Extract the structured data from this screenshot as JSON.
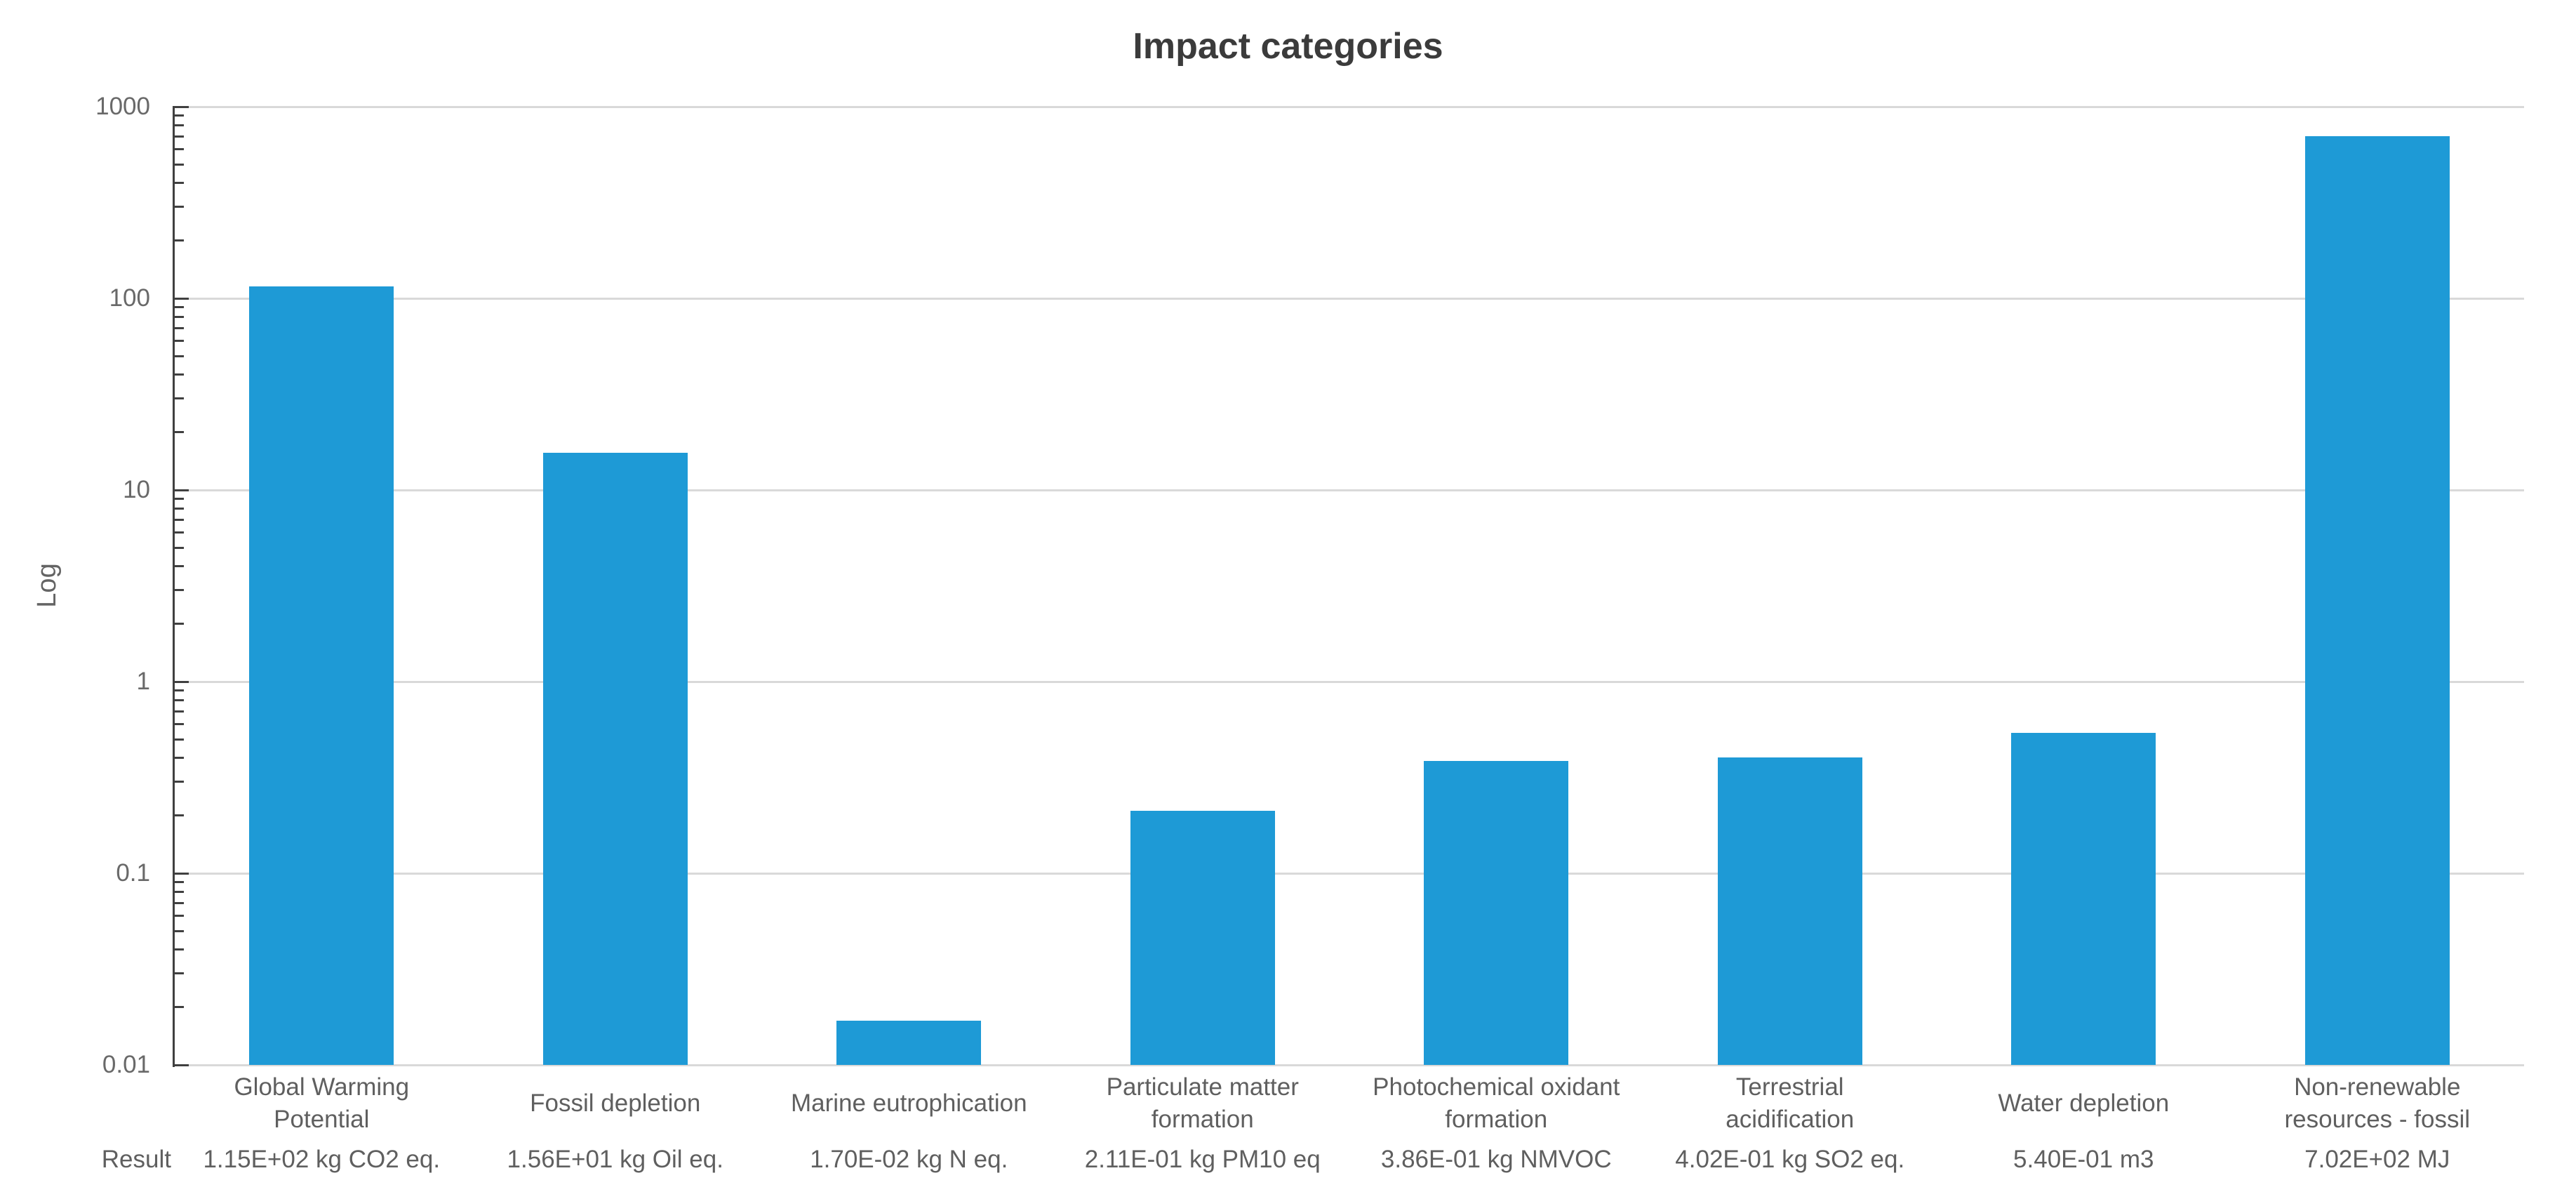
{
  "chart_data": {
    "type": "bar",
    "title": "Impact categories",
    "ylabel": "Log",
    "yscale": "log",
    "ylim": [
      0.01,
      1000
    ],
    "yticks": [
      "1000",
      "100",
      "10",
      "1",
      "0.1",
      "0.01"
    ],
    "grid": "horizontal-decade-gridlines",
    "legend": "none",
    "categories": [
      "Global Warming\nPotential",
      "Fossil depletion",
      "Marine eutrophication",
      "Particulate matter\nformation",
      "Photochemical oxidant\nformation",
      "Terrestrial\nacidification",
      "Water depletion",
      "Non-renewable\nresources - fossil"
    ],
    "values": [
      115,
      15.6,
      0.017,
      0.211,
      0.386,
      0.402,
      0.54,
      702
    ],
    "result_row_label": "Result",
    "results": [
      "1.15E+02 kg CO2 eq.",
      "1.56E+01 kg Oil eq.",
      "1.70E-02 kg N eq.",
      "2.11E-01 kg PM10 eq",
      "3.86E-01 kg NMVOC",
      "4.02E-01 kg SO2 eq.",
      "5.40E-01 m3",
      "7.02E+02 MJ"
    ],
    "colors": {
      "bar": "#1e9ad6",
      "gridline": "#d9d9d9",
      "axis": "#404040",
      "tick_label": "#696969",
      "category_label": "#5f5f5f",
      "title": "#3b3b3b"
    }
  }
}
